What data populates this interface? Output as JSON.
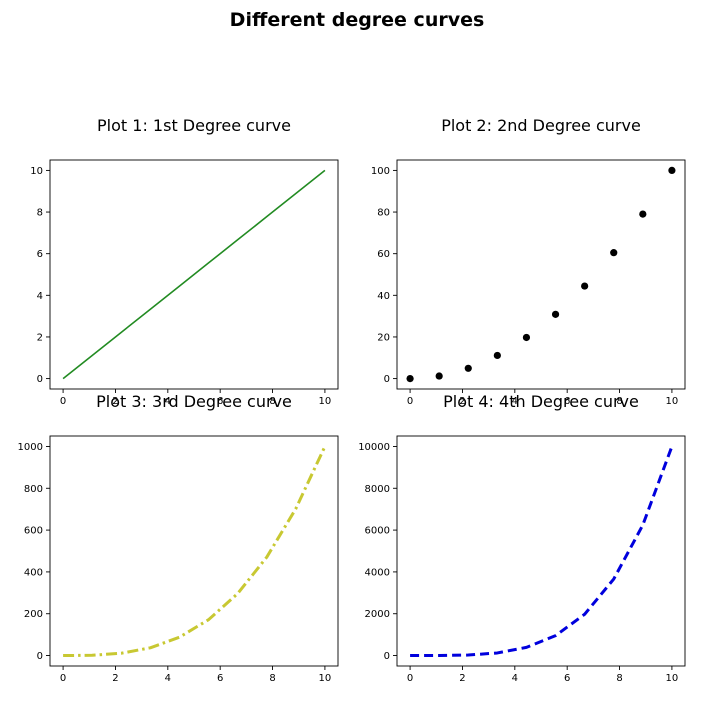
{
  "figure": {
    "suptitle": "Different degree curves"
  },
  "chart_data": [
    {
      "type": "line",
      "title": "Plot 1: 1st Degree curve",
      "color": "#228b22",
      "style": "solid",
      "x": [
        0,
        1.111,
        2.222,
        3.333,
        4.444,
        5.556,
        6.667,
        7.778,
        8.889,
        10
      ],
      "y": [
        0,
        1.111,
        2.222,
        3.333,
        4.444,
        5.556,
        6.667,
        7.778,
        8.889,
        10
      ],
      "xlim": [
        -0.5,
        10.5
      ],
      "ylim": [
        -0.5,
        10.5
      ],
      "xticks": [
        0,
        2,
        4,
        6,
        8,
        10
      ],
      "yticks": [
        0,
        2,
        4,
        6,
        8,
        10
      ],
      "xlabel": "",
      "ylabel": ""
    },
    {
      "type": "scatter",
      "title": "Plot 2: 2nd Degree curve",
      "color": "#000000",
      "style": "markers",
      "x": [
        0,
        1.111,
        2.222,
        3.333,
        4.444,
        5.556,
        6.667,
        7.778,
        8.889,
        10
      ],
      "y": [
        0,
        1.23,
        4.94,
        11.11,
        19.75,
        30.86,
        44.44,
        60.49,
        79.01,
        100
      ],
      "xlim": [
        -0.5,
        10.5
      ],
      "ylim": [
        -5,
        105
      ],
      "xticks": [
        0,
        2,
        4,
        6,
        8,
        10
      ],
      "yticks": [
        0,
        20,
        40,
        60,
        80,
        100
      ],
      "xlabel": "",
      "ylabel": ""
    },
    {
      "type": "line",
      "title": "Plot 3: 3rd Degree curve",
      "color": "#c8c832",
      "style": "dashdot",
      "x": [
        0,
        1.111,
        2.222,
        3.333,
        4.444,
        5.556,
        6.667,
        7.778,
        8.889,
        10
      ],
      "y": [
        0,
        1.37,
        10.97,
        37.04,
        87.79,
        171.47,
        296.3,
        470.51,
        702.33,
        1000
      ],
      "xlim": [
        -0.5,
        10.5
      ],
      "ylim": [
        -50,
        1050
      ],
      "xticks": [
        0,
        2,
        4,
        6,
        8,
        10
      ],
      "yticks": [
        0,
        200,
        400,
        600,
        800,
        1000
      ],
      "xlabel": "",
      "ylabel": ""
    },
    {
      "type": "line",
      "title": "Plot 4: 4th Degree curve",
      "color": "#0000dd",
      "style": "dashed",
      "x": [
        0,
        1.111,
        2.222,
        3.333,
        4.444,
        5.556,
        6.667,
        7.778,
        8.889,
        10
      ],
      "y": [
        0,
        1.52,
        24.39,
        123.46,
        390.18,
        952.6,
        1975.3,
        3659.5,
        6242.9,
        10000
      ],
      "xlim": [
        -0.5,
        10.5
      ],
      "ylim": [
        -500,
        10500
      ],
      "xticks": [
        0,
        2,
        4,
        6,
        8,
        10
      ],
      "yticks": [
        0,
        2000,
        4000,
        6000,
        8000,
        10000
      ],
      "xlabel": "",
      "ylabel": ""
    }
  ]
}
